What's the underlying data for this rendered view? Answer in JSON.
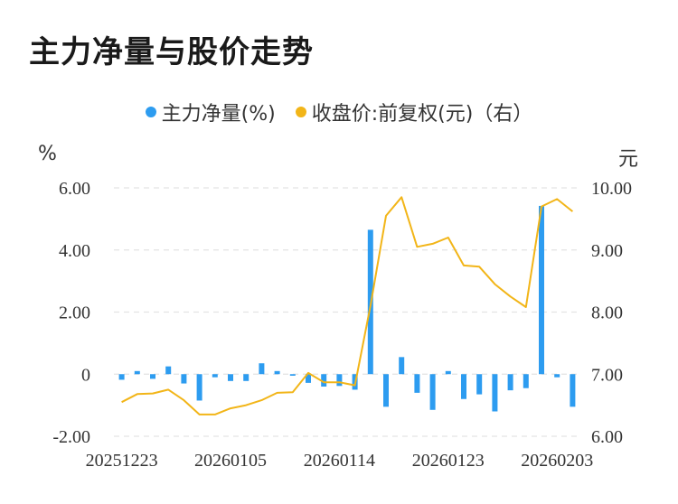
{
  "title": "主力净量与股价走势",
  "legend": {
    "series1": "主力净量(%)",
    "series2": "收盘价:前复权(元)（右）"
  },
  "units": {
    "left": "%",
    "right": "元"
  },
  "colors": {
    "bar": "#2d9cf0",
    "line": "#f2b518",
    "grid": "#e3e3e3",
    "text": "#333333"
  },
  "chart_data": {
    "type": "bar+line",
    "left_axis": {
      "ticks": [
        "6.00",
        "4.00",
        "2.00",
        "0",
        "-2.00"
      ],
      "ylim": [
        -2.0,
        6.0
      ]
    },
    "right_axis": {
      "ticks": [
        "10.00",
        "9.00",
        "8.00",
        "7.00",
        "6.00"
      ],
      "ylim": [
        6.0,
        10.0
      ]
    },
    "x_tick_labels": [
      "20251223",
      "20260105",
      "20260114",
      "20260123",
      "20260203"
    ],
    "x_tick_positions": [
      0,
      7,
      14,
      21,
      28
    ],
    "grid": true,
    "legend_position": "top-center",
    "series": [
      {
        "name": "主力净量(%)",
        "type": "bar",
        "axis": "left",
        "values": [
          -0.18,
          0.1,
          -0.15,
          0.25,
          -0.3,
          -0.85,
          -0.1,
          -0.22,
          -0.22,
          0.35,
          0.1,
          -0.05,
          -0.28,
          -0.4,
          -0.38,
          -0.5,
          4.65,
          -1.05,
          0.55,
          -0.6,
          -1.15,
          0.1,
          -0.8,
          -0.65,
          -1.2,
          -0.52,
          -0.45,
          5.42,
          -0.1,
          -1.05
        ]
      },
      {
        "name": "收盘价:前复权(元)（右）",
        "type": "line",
        "axis": "right",
        "values": [
          6.55,
          6.68,
          6.69,
          6.75,
          6.58,
          6.35,
          6.35,
          6.45,
          6.5,
          6.58,
          6.7,
          6.71,
          7.02,
          6.87,
          6.87,
          6.82,
          8.1,
          9.55,
          9.85,
          9.05,
          9.1,
          9.2,
          8.75,
          8.73,
          8.45,
          8.25,
          8.08,
          9.7,
          9.82,
          9.62
        ]
      }
    ]
  }
}
